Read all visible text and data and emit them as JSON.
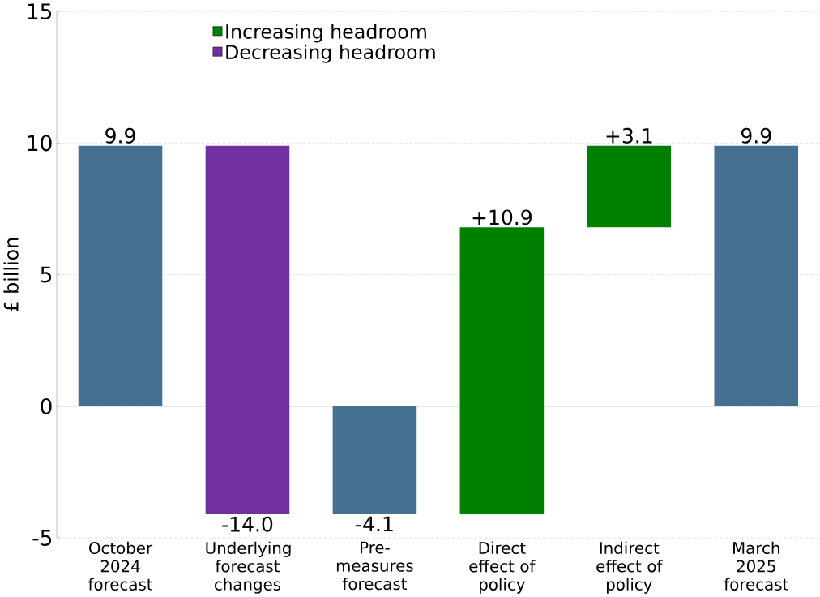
{
  "chart_data": {
    "type": "bar",
    "ylabel": "£ billion",
    "categories": [
      "October 2024 forecast",
      "Underlying forecast changes",
      "Pre-measures forecast",
      "Direct effect of policy",
      "Indirect effect of policy",
      "March 2025 forecast"
    ],
    "series": [
      {
        "color": "#46708f",
        "values": [
          9.9,
          null,
          -4.1,
          null,
          null,
          9.9
        ],
        "base": [
          0,
          null,
          0,
          null,
          null,
          0
        ],
        "value_labels": [
          "9.9",
          null,
          "-4.1",
          null,
          null,
          "9.9"
        ]
      },
      {
        "name": "Increasing headroom",
        "color": "#008000",
        "values": [
          null,
          null,
          null,
          10.9,
          3.1,
          null
        ],
        "base": [
          null,
          null,
          null,
          -4.1,
          6.8,
          null
        ],
        "value_labels": [
          null,
          null,
          null,
          "+10.9",
          "+3.1",
          null
        ]
      },
      {
        "name": "Decreasing headroom",
        "color": "#7030a0",
        "values": [
          null,
          -14.0,
          null,
          null,
          null,
          null
        ],
        "base": [
          null,
          9.9,
          null,
          null,
          null,
          null
        ],
        "value_labels": [
          null,
          "-14.0",
          null,
          null,
          null,
          null
        ]
      }
    ],
    "ylim": [
      -5,
      15
    ],
    "yticks": [
      -5,
      0,
      5,
      10,
      15
    ],
    "grid": "y",
    "legend": "top left"
  }
}
